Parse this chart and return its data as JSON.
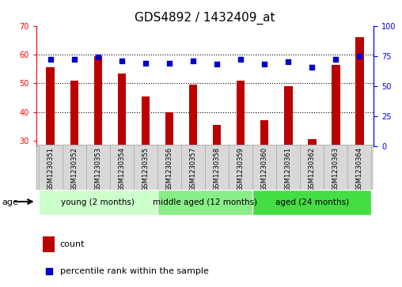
{
  "title": "GDS4892 / 1432409_at",
  "samples": [
    "GSM1230351",
    "GSM1230352",
    "GSM1230353",
    "GSM1230354",
    "GSM1230355",
    "GSM1230356",
    "GSM1230357",
    "GSM1230358",
    "GSM1230359",
    "GSM1230360",
    "GSM1230361",
    "GSM1230362",
    "GSM1230363",
    "GSM1230364"
  ],
  "counts": [
    55.5,
    51.0,
    59.5,
    53.5,
    45.5,
    40.0,
    49.5,
    35.5,
    51.0,
    37.0,
    49.0,
    30.5,
    56.5,
    66.0
  ],
  "percentiles": [
    72,
    72,
    74,
    71,
    69,
    69,
    71,
    68,
    72,
    68,
    70,
    66,
    72,
    75
  ],
  "ylim_left": [
    28,
    70
  ],
  "ylim_right": [
    0,
    100
  ],
  "yticks_left": [
    30,
    40,
    50,
    60,
    70
  ],
  "yticks_right": [
    0,
    25,
    50,
    75,
    100
  ],
  "bar_color": "#bb0000",
  "dot_color": "#0000cc",
  "bar_width": 0.35,
  "group_colors": [
    "#ccffcc",
    "#88ee88",
    "#44dd44"
  ],
  "group_labels": [
    "young (2 months)",
    "middle aged (12 months)",
    "aged (24 months)"
  ],
  "group_starts": [
    0,
    5,
    9
  ],
  "group_ends": [
    4,
    8,
    13
  ],
  "age_label": "age",
  "legend_count_label": "count",
  "legend_percentile_label": "percentile rank within the sample",
  "title_fontsize": 11,
  "tick_fontsize": 7,
  "label_fontsize": 8
}
